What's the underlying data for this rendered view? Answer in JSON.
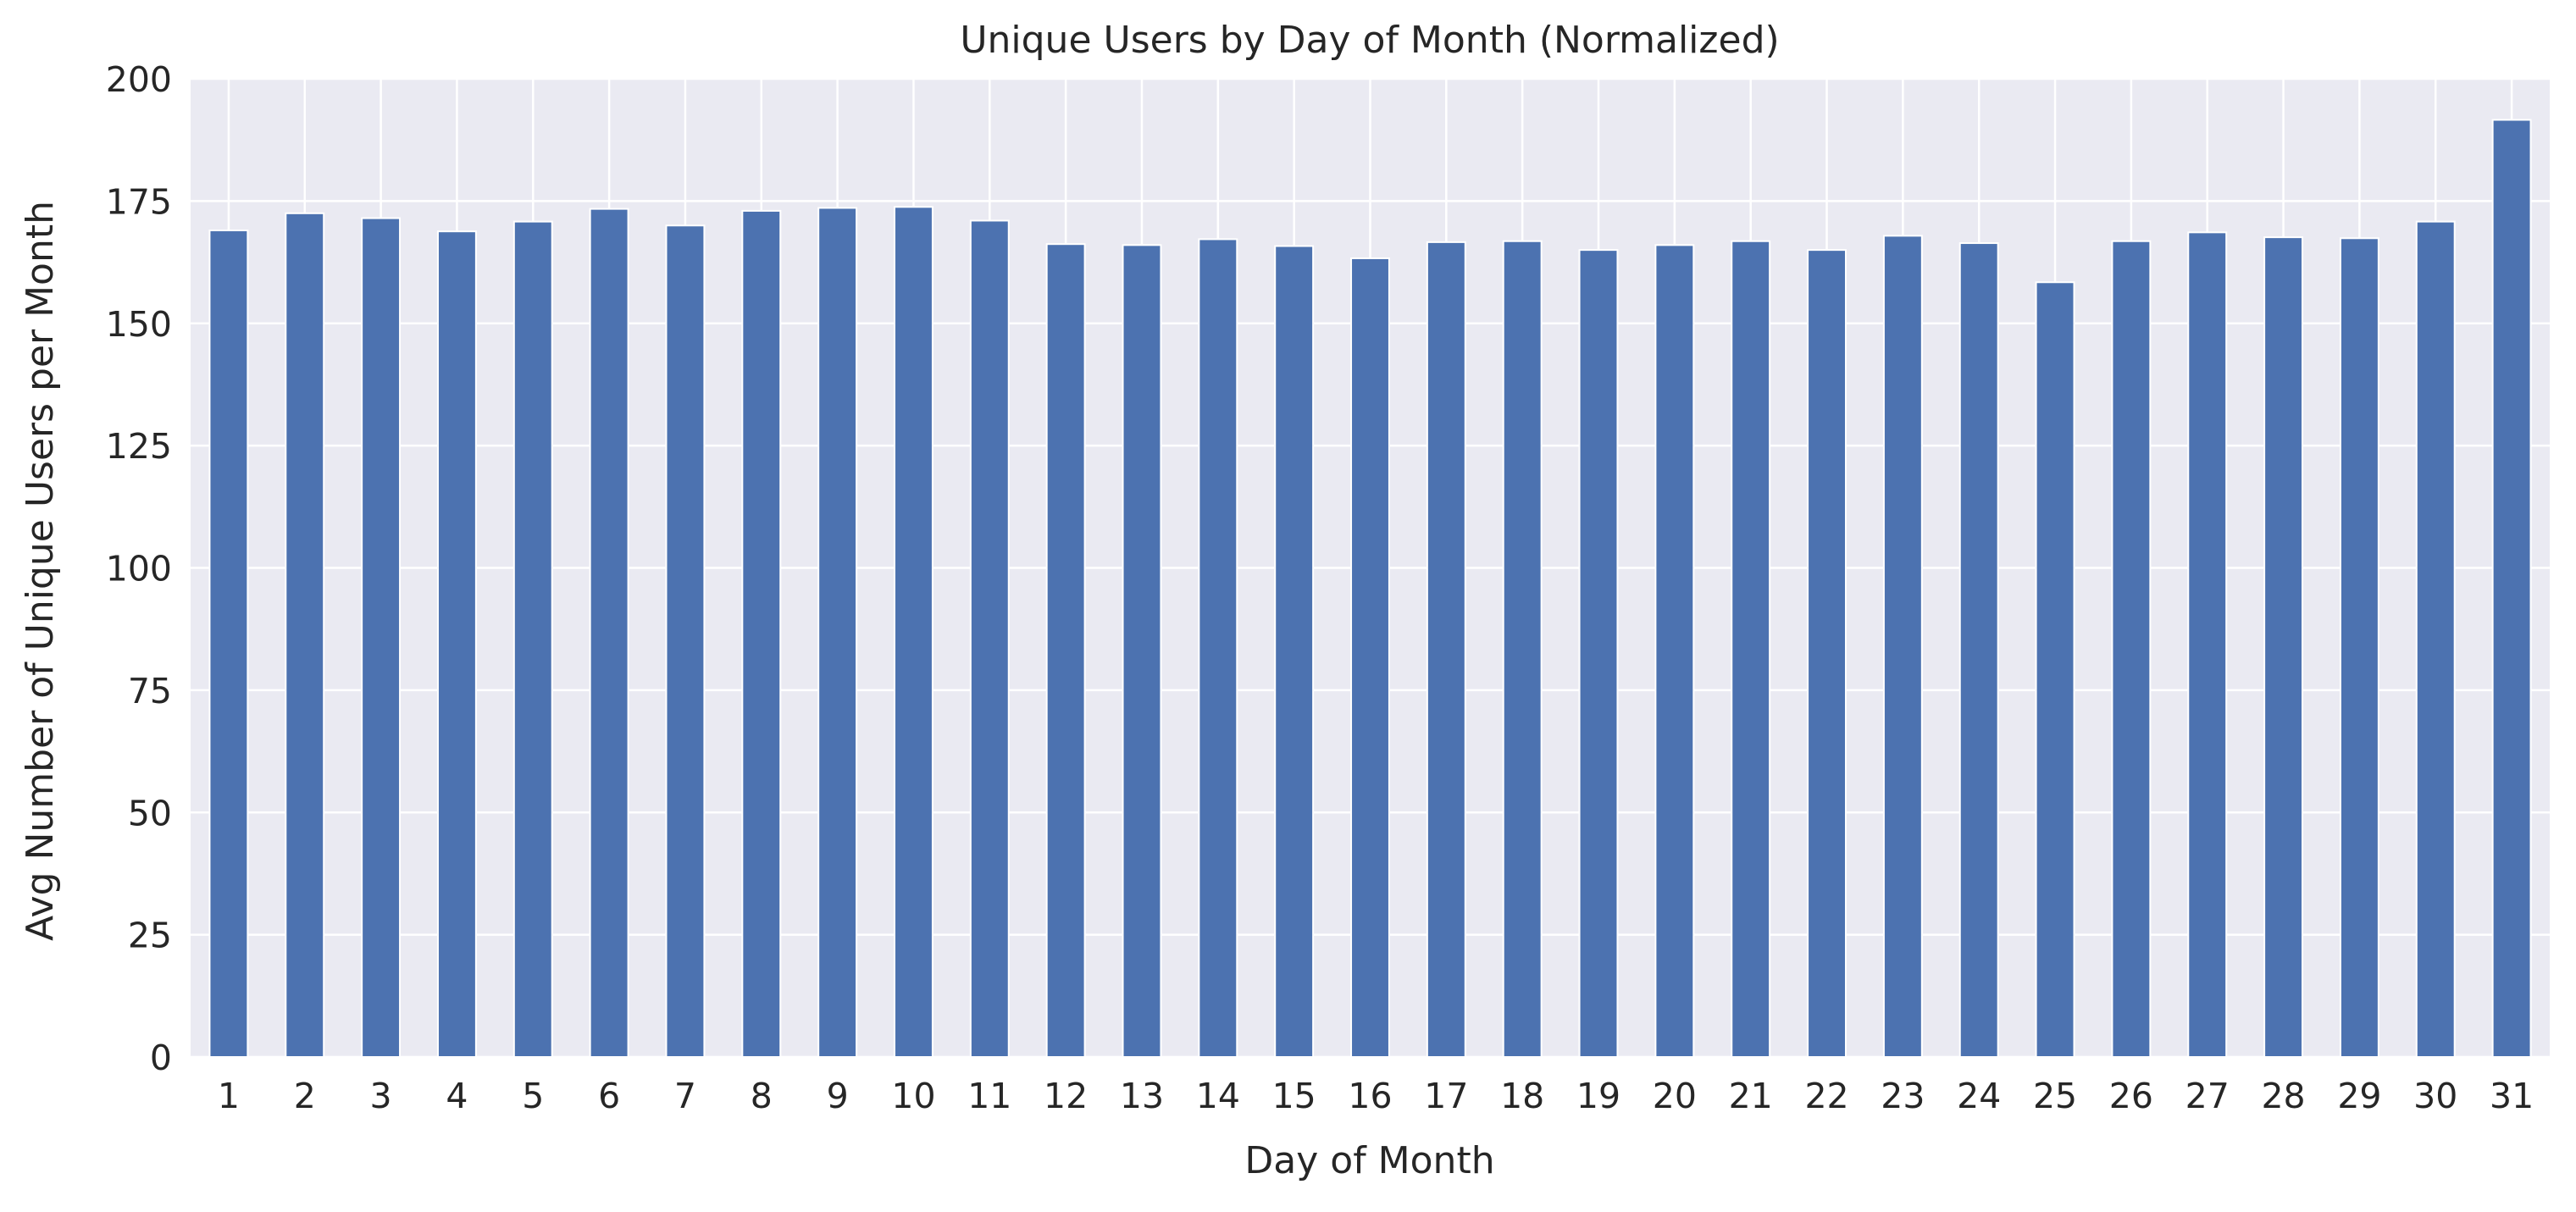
{
  "chart_data": {
    "type": "bar",
    "title": "Unique Users by Day of Month (Normalized)",
    "xlabel": "Day of Month",
    "ylabel": "Avg Number of Unique Users per Month",
    "categories": [
      "1",
      "2",
      "3",
      "4",
      "5",
      "6",
      "7",
      "8",
      "9",
      "10",
      "11",
      "12",
      "13",
      "14",
      "15",
      "16",
      "17",
      "18",
      "19",
      "20",
      "21",
      "22",
      "23",
      "24",
      "25",
      "26",
      "27",
      "28",
      "29",
      "30",
      "31"
    ],
    "values": [
      169.0,
      172.5,
      171.5,
      168.8,
      170.8,
      173.4,
      170.0,
      173.0,
      173.6,
      173.8,
      171.0,
      166.2,
      166.0,
      167.2,
      165.8,
      163.3,
      166.6,
      166.8,
      165.0,
      166.0,
      166.8,
      165.0,
      167.9,
      166.4,
      158.4,
      166.8,
      168.6,
      167.6,
      167.4,
      170.8,
      191.6
    ],
    "ylim": [
      0,
      200
    ],
    "yticks": [
      0,
      25,
      50,
      75,
      100,
      125,
      150,
      175,
      200
    ],
    "grid": true,
    "legend": "none",
    "colors": {
      "bar": "#4c72b0",
      "background": "#eaeaf2",
      "grid": "#ffffff",
      "text": "#262626"
    }
  }
}
